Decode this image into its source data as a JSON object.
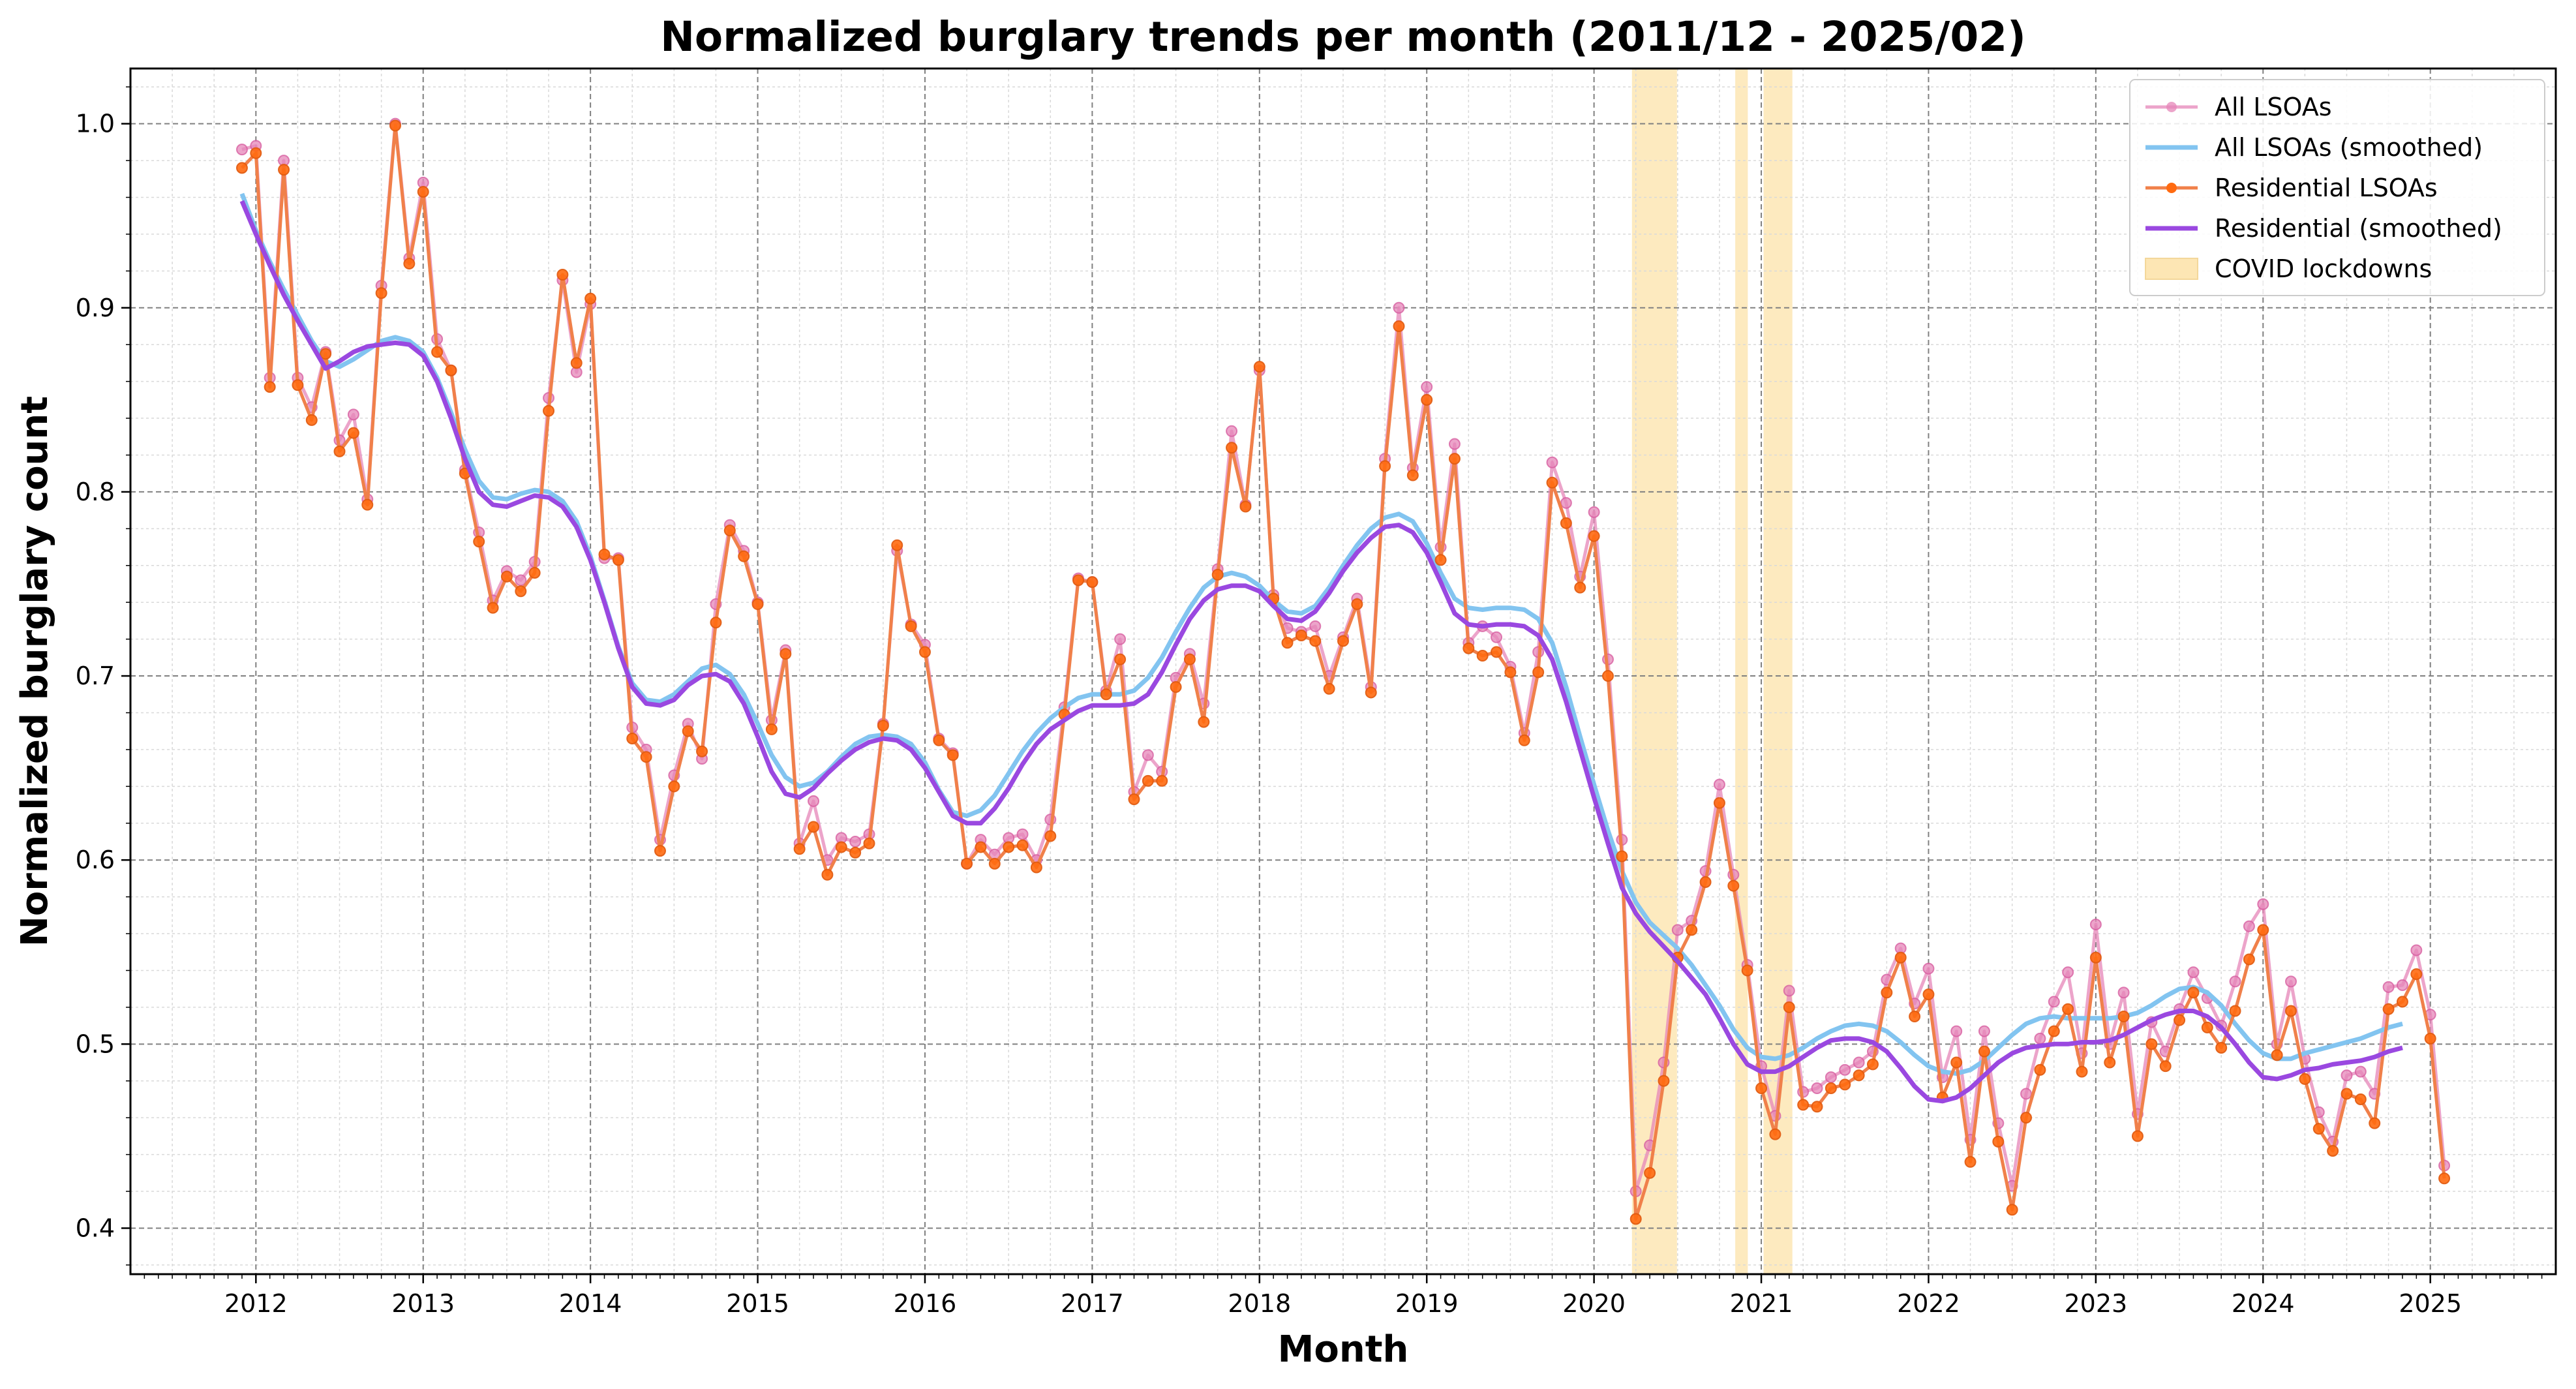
{
  "chart_data": {
    "type": "line",
    "title": "Normalized burglary trends per month (2011/12 - 2025/02)",
    "xlabel": "Month",
    "ylabel": "Normalized burglary count",
    "xlim": [
      2011.25,
      2025.75
    ],
    "ylim": [
      0.375,
      1.03
    ],
    "x_ticks": [
      "2012",
      "2013",
      "2014",
      "2015",
      "2016",
      "2017",
      "2018",
      "2019",
      "2020",
      "2021",
      "2022",
      "2023",
      "2024",
      "2025"
    ],
    "y_ticks": [
      "0.4",
      "0.5",
      "0.6",
      "0.7",
      "0.8",
      "0.9",
      "1.0"
    ],
    "grid": true,
    "legend_position": "top-right",
    "colors": {
      "all": "#e685b8",
      "all_smoothed": "#82c4f0",
      "residential": "#f0804a",
      "residential_marker": "#ff6a10",
      "residential_smoothed": "#9a48e0",
      "covid": "#fde6b4"
    },
    "x_start": "2011-12",
    "x_end": "2025-02",
    "series": [
      {
        "name": "All LSOAs",
        "values": [
          0.986,
          0.988,
          0.862,
          0.98,
          0.862,
          0.846,
          0.876,
          0.828,
          0.842,
          0.796,
          0.912,
          1.0,
          0.927,
          0.968,
          0.883,
          0.866,
          0.812,
          0.778,
          0.741,
          0.757,
          0.752,
          0.762,
          0.851,
          0.915,
          0.865,
          0.902,
          0.764,
          0.764,
          0.672,
          0.66,
          0.611,
          0.646,
          0.674,
          0.655,
          0.739,
          0.782,
          0.768,
          0.74,
          0.676,
          0.714,
          0.609,
          0.632,
          0.6,
          0.612,
          0.61,
          0.614,
          0.674,
          0.768,
          0.728,
          0.717,
          0.666,
          0.658,
          0.598,
          0.611,
          0.603,
          0.612,
          0.614,
          0.6,
          0.622,
          0.683,
          0.753,
          0.751,
          0.692,
          0.72,
          0.637,
          0.657,
          0.648,
          0.699,
          0.712,
          0.685,
          0.758,
          0.833,
          0.793,
          0.866,
          0.744,
          0.726,
          0.724,
          0.727,
          0.7,
          0.721,
          0.742,
          0.694,
          0.818,
          0.9,
          0.813,
          0.857,
          0.77,
          0.826,
          0.718,
          0.727,
          0.721,
          0.705,
          0.669,
          0.713,
          0.816,
          0.794,
          0.754,
          0.789,
          0.709,
          0.611,
          0.42,
          0.445,
          0.49,
          0.562,
          0.567,
          0.594,
          0.641,
          0.592,
          0.543,
          0.488,
          0.461,
          0.529,
          0.474,
          0.476,
          0.482,
          0.486,
          0.49,
          0.496,
          0.535,
          0.552,
          0.522,
          0.541,
          0.482,
          0.507,
          0.448,
          0.507,
          0.457,
          0.423,
          0.473,
          0.503,
          0.523,
          0.539,
          0.495,
          0.565,
          0.5,
          0.528,
          0.462,
          0.512,
          0.496,
          0.519,
          0.539,
          0.525,
          0.51,
          0.534,
          0.564,
          0.576,
          0.5,
          0.534,
          0.492,
          0.463,
          0.447,
          0.483,
          0.485,
          0.473,
          0.531,
          0.532,
          0.551,
          0.516,
          0.434
        ]
      },
      {
        "name": "Residential LSOAs",
        "values": [
          0.976,
          0.984,
          0.857,
          0.975,
          0.858,
          0.839,
          0.875,
          0.822,
          0.832,
          0.793,
          0.908,
          0.999,
          0.924,
          0.963,
          0.876,
          0.866,
          0.81,
          0.773,
          0.737,
          0.754,
          0.746,
          0.756,
          0.844,
          0.918,
          0.87,
          0.905,
          0.766,
          0.763,
          0.666,
          0.656,
          0.605,
          0.64,
          0.67,
          0.659,
          0.729,
          0.779,
          0.765,
          0.739,
          0.671,
          0.712,
          0.606,
          0.618,
          0.592,
          0.607,
          0.604,
          0.609,
          0.673,
          0.771,
          0.727,
          0.713,
          0.665,
          0.657,
          0.598,
          0.607,
          0.598,
          0.607,
          0.608,
          0.596,
          0.613,
          0.679,
          0.752,
          0.751,
          0.69,
          0.709,
          0.633,
          0.643,
          0.643,
          0.694,
          0.709,
          0.675,
          0.755,
          0.824,
          0.792,
          0.868,
          0.742,
          0.718,
          0.722,
          0.719,
          0.693,
          0.719,
          0.739,
          0.691,
          0.814,
          0.89,
          0.809,
          0.85,
          0.763,
          0.818,
          0.715,
          0.711,
          0.713,
          0.702,
          0.665,
          0.702,
          0.805,
          0.783,
          0.748,
          0.776,
          0.7,
          0.602,
          0.405,
          0.43,
          0.48,
          0.547,
          0.562,
          0.588,
          0.631,
          0.586,
          0.54,
          0.476,
          0.451,
          0.52,
          0.467,
          0.466,
          0.476,
          0.478,
          0.483,
          0.489,
          0.528,
          0.547,
          0.515,
          0.527,
          0.471,
          0.49,
          0.436,
          0.496,
          0.447,
          0.41,
          0.46,
          0.486,
          0.507,
          0.519,
          0.485,
          0.547,
          0.49,
          0.515,
          0.45,
          0.5,
          0.488,
          0.513,
          0.528,
          0.509,
          0.498,
          0.518,
          0.546,
          0.562,
          0.494,
          0.518,
          0.481,
          0.454,
          0.442,
          0.473,
          0.47,
          0.457,
          0.519,
          0.523,
          0.538,
          0.503,
          0.427
        ]
      },
      {
        "name": "All LSOAs (smoothed)",
        "values": [
          0.962,
          0.942,
          0.925,
          0.91,
          0.896,
          0.882,
          0.871,
          0.868,
          0.872,
          0.877,
          0.882,
          0.884,
          0.882,
          0.876,
          0.862,
          0.843,
          0.823,
          0.806,
          0.797,
          0.796,
          0.799,
          0.801,
          0.8,
          0.795,
          0.784,
          0.765,
          0.741,
          0.716,
          0.696,
          0.687,
          0.686,
          0.69,
          0.697,
          0.704,
          0.706,
          0.701,
          0.69,
          0.674,
          0.657,
          0.645,
          0.64,
          0.642,
          0.648,
          0.656,
          0.663,
          0.667,
          0.668,
          0.667,
          0.663,
          0.653,
          0.638,
          0.626,
          0.624,
          0.627,
          0.635,
          0.647,
          0.659,
          0.669,
          0.677,
          0.683,
          0.688,
          0.69,
          0.69,
          0.69,
          0.692,
          0.699,
          0.71,
          0.724,
          0.737,
          0.748,
          0.754,
          0.756,
          0.754,
          0.749,
          0.741,
          0.735,
          0.734,
          0.738,
          0.748,
          0.76,
          0.771,
          0.78,
          0.786,
          0.788,
          0.784,
          0.772,
          0.756,
          0.742,
          0.737,
          0.736,
          0.737,
          0.737,
          0.736,
          0.731,
          0.718,
          0.694,
          0.667,
          0.641,
          0.616,
          0.594,
          0.577,
          0.566,
          0.559,
          0.552,
          0.543,
          0.532,
          0.521,
          0.508,
          0.498,
          0.493,
          0.492,
          0.494,
          0.498,
          0.503,
          0.507,
          0.51,
          0.511,
          0.51,
          0.507,
          0.501,
          0.494,
          0.488,
          0.485,
          0.484,
          0.486,
          0.491,
          0.498,
          0.505,
          0.511,
          0.514,
          0.515,
          0.514,
          0.514,
          0.514,
          0.514,
          0.515,
          0.517,
          0.521,
          0.526,
          0.53,
          0.531,
          0.528,
          0.521,
          0.511,
          0.502,
          0.495,
          0.492,
          0.492,
          0.495,
          0.497,
          0.499,
          0.501,
          0.503,
          0.506,
          0.509,
          0.511
        ]
      },
      {
        "name": "Residential (smoothed)",
        "values": [
          0.958,
          0.94,
          0.923,
          0.907,
          0.893,
          0.88,
          0.867,
          0.871,
          0.876,
          0.879,
          0.88,
          0.881,
          0.88,
          0.874,
          0.86,
          0.84,
          0.818,
          0.8,
          0.793,
          0.792,
          0.795,
          0.798,
          0.797,
          0.792,
          0.781,
          0.763,
          0.74,
          0.715,
          0.694,
          0.685,
          0.684,
          0.687,
          0.695,
          0.7,
          0.701,
          0.697,
          0.685,
          0.667,
          0.648,
          0.636,
          0.634,
          0.639,
          0.647,
          0.654,
          0.66,
          0.664,
          0.666,
          0.665,
          0.66,
          0.65,
          0.637,
          0.624,
          0.62,
          0.62,
          0.628,
          0.639,
          0.652,
          0.663,
          0.671,
          0.676,
          0.681,
          0.684,
          0.684,
          0.684,
          0.685,
          0.69,
          0.702,
          0.717,
          0.731,
          0.741,
          0.747,
          0.749,
          0.749,
          0.746,
          0.738,
          0.731,
          0.73,
          0.735,
          0.745,
          0.757,
          0.767,
          0.775,
          0.781,
          0.782,
          0.778,
          0.767,
          0.751,
          0.734,
          0.728,
          0.727,
          0.728,
          0.728,
          0.727,
          0.722,
          0.709,
          0.686,
          0.66,
          0.634,
          0.609,
          0.585,
          0.571,
          0.561,
          0.553,
          0.545,
          0.536,
          0.527,
          0.514,
          0.5,
          0.489,
          0.485,
          0.485,
          0.488,
          0.493,
          0.498,
          0.502,
          0.503,
          0.503,
          0.501,
          0.496,
          0.487,
          0.477,
          0.47,
          0.469,
          0.471,
          0.476,
          0.483,
          0.49,
          0.495,
          0.498,
          0.499,
          0.5,
          0.5,
          0.501,
          0.501,
          0.502,
          0.505,
          0.509,
          0.513,
          0.516,
          0.518,
          0.518,
          0.515,
          0.509,
          0.5,
          0.49,
          0.482,
          0.481,
          0.483,
          0.486,
          0.487,
          0.489,
          0.49,
          0.491,
          0.493,
          0.496,
          0.498
        ]
      }
    ],
    "covid_lockdowns": {
      "name": "COVID lockdowns",
      "ranges": [
        [
          "2020-03-23",
          "2020-06-30"
        ],
        [
          "2020-11-05",
          "2020-12-02"
        ],
        [
          "2021-01-06",
          "2021-03-08"
        ]
      ]
    }
  }
}
